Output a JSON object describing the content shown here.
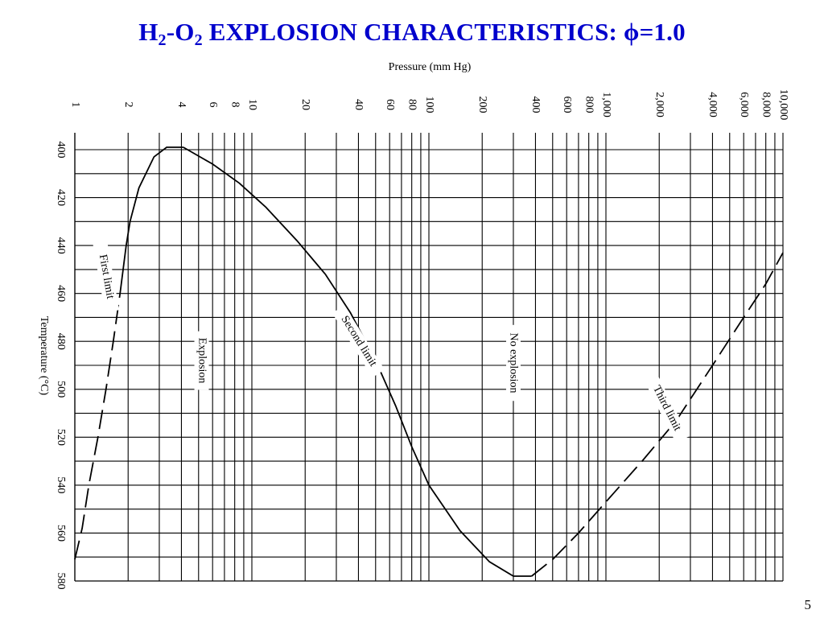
{
  "slide": {
    "title_pre": "H",
    "title_sub1": "2",
    "title_mid": "-O",
    "title_sub2": "2",
    "title_post": " EXPLOSION CHARACTERISTICS: ",
    "title_phi": "ϕ",
    "title_end": "=1.0",
    "page_number": "5",
    "title_color": "#0000cc"
  },
  "chart_data": {
    "type": "line",
    "xlabel": "Pressure (mm Hg)",
    "ylabel": "Temperature (°C)",
    "x_scale": "log",
    "xlim": [
      1,
      10000
    ],
    "ylim": [
      400,
      580
    ],
    "y_axis_inverted": true,
    "orientation": "rotated 90° clockwise",
    "grid": true,
    "x_ticks": [
      {
        "value": 1,
        "label": "1"
      },
      {
        "value": 2,
        "label": "2"
      },
      {
        "value": 4,
        "label": "4"
      },
      {
        "value": 6,
        "label": "6"
      },
      {
        "value": 8,
        "label": "8"
      },
      {
        "value": 10,
        "label": "10"
      },
      {
        "value": 20,
        "label": "20"
      },
      {
        "value": 40,
        "label": "40"
      },
      {
        "value": 60,
        "label": "60"
      },
      {
        "value": 80,
        "label": "80"
      },
      {
        "value": 100,
        "label": "100"
      },
      {
        "value": 200,
        "label": "200"
      },
      {
        "value": 400,
        "label": "400"
      },
      {
        "value": 600,
        "label": "600"
      },
      {
        "value": 800,
        "label": "800"
      },
      {
        "value": 1000,
        "label": "1,000"
      },
      {
        "value": 2000,
        "label": "2,000"
      },
      {
        "value": 4000,
        "label": "4,000"
      },
      {
        "value": 6000,
        "label": "6,000"
      },
      {
        "value": 8000,
        "label": "8,000"
      },
      {
        "value": 10000,
        "label": "10,000"
      }
    ],
    "y_ticks": [
      400,
      420,
      440,
      460,
      480,
      500,
      520,
      540,
      560,
      580
    ],
    "series": [
      {
        "name": "First limit",
        "style": "dashed-upper-part",
        "solid_above_T": 446,
        "points": [
          [
            1,
            571
          ],
          [
            1.1,
            558
          ],
          [
            1.2,
            540
          ],
          [
            1.35,
            520
          ],
          [
            1.5,
            500
          ],
          [
            1.65,
            480
          ],
          [
            1.8,
            460
          ],
          [
            1.95,
            440
          ],
          [
            2.05,
            430
          ],
          [
            2.3,
            416
          ],
          [
            2.8,
            403
          ],
          [
            3.3,
            399
          ],
          [
            4.1,
            399
          ]
        ]
      },
      {
        "name": "Second limit",
        "style": "solid",
        "points": [
          [
            4.1,
            399
          ],
          [
            6,
            406
          ],
          [
            8.5,
            414
          ],
          [
            12,
            424
          ],
          [
            18,
            438
          ],
          [
            26,
            452
          ],
          [
            36,
            468
          ],
          [
            50,
            488
          ],
          [
            65,
            507
          ],
          [
            80,
            524
          ],
          [
            100,
            540
          ],
          [
            150,
            559
          ],
          [
            220,
            572
          ],
          [
            300,
            578
          ],
          [
            380,
            578
          ]
        ]
      },
      {
        "name": "Third limit",
        "style": "dashed",
        "points": [
          [
            380,
            578
          ],
          [
            500,
            571
          ],
          [
            700,
            560
          ],
          [
            1000,
            547
          ],
          [
            1600,
            530
          ],
          [
            2500,
            513
          ],
          [
            4000,
            490
          ],
          [
            6000,
            470
          ],
          [
            8000,
            456
          ],
          [
            10000,
            443
          ]
        ]
      }
    ],
    "annotations": [
      {
        "text": "First limit",
        "x": 1.5,
        "T": 453
      },
      {
        "text": "Second limit",
        "x": 40,
        "T": 480
      },
      {
        "text": "Explosion",
        "x": 5.2,
        "T": 488
      },
      {
        "text": "No explosion",
        "x": 300,
        "T": 489
      },
      {
        "text": "Third limit",
        "x": 2200,
        "T": 508
      }
    ]
  }
}
